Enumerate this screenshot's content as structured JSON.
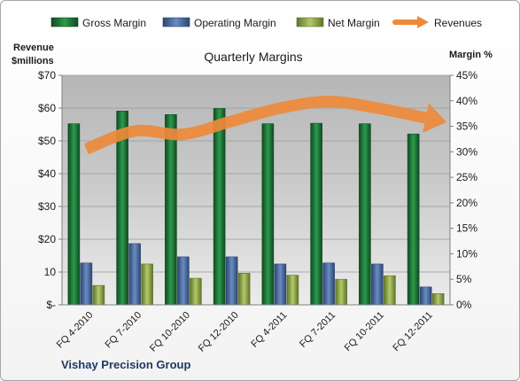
{
  "chart_data": {
    "type": "bar",
    "title": "Quarterly Margins",
    "categories": [
      "FQ 4-2010",
      "FQ 7-2010",
      "FQ 10-2010",
      "FQ 12-2010",
      "FQ 4-2011",
      "FQ 7-2011",
      "FQ 10-2011",
      "FQ 12-2011"
    ],
    "series": [
      {
        "name": "Gross Margin",
        "axis": "right",
        "values": [
          35.5,
          38.0,
          37.3,
          38.5,
          35.5,
          35.6,
          35.5,
          33.5
        ]
      },
      {
        "name": "Operating Margin",
        "axis": "right",
        "values": [
          8.2,
          12.0,
          9.4,
          9.4,
          8.0,
          8.2,
          8.0,
          3.5
        ]
      },
      {
        "name": "Net Margin",
        "axis": "right",
        "values": [
          3.8,
          8.0,
          5.2,
          6.2,
          5.8,
          5.0,
          5.7,
          2.2
        ]
      },
      {
        "name": "Revenues",
        "axis": "left",
        "type": "line",
        "values": [
          47.5,
          53,
          52,
          56,
          60,
          62,
          60,
          57
        ]
      }
    ],
    "left_axis": {
      "label_line1": "Revenue",
      "label_line2": "$millions",
      "min": 0,
      "max": 70,
      "step": 10,
      "tick_labels": [
        "$-",
        "10",
        "$20",
        "$30",
        "$40",
        "$50",
        "$60",
        "$70"
      ]
    },
    "right_axis": {
      "label": "Margin %",
      "min": 0,
      "max": 45,
      "step": 5,
      "tick_labels": [
        "0%",
        "5%",
        "10%",
        "15%",
        "20%",
        "25%",
        "30%",
        "35%",
        "40%",
        "45%"
      ]
    },
    "grid": true,
    "legend_position": "top",
    "colors": {
      "gross": "#1e7b3a",
      "operating": "#4a6fa5",
      "net": "#8fa84a",
      "revenues": "#ed8a3a"
    }
  },
  "footer": {
    "company": "Vishay Precision Group"
  }
}
